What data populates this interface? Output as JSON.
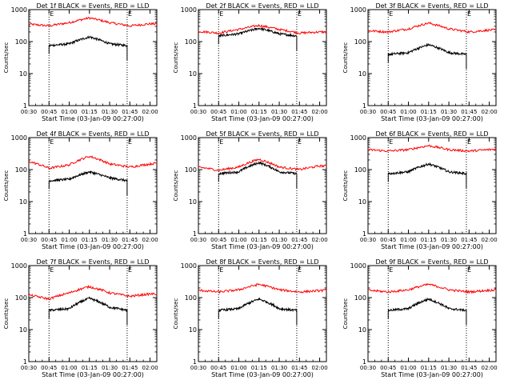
{
  "chart_data": [
    {
      "type": "line",
      "title": "Det 1f BLACK = Events, RED = LLD",
      "xlabel": "Start Time (03-Jan-09 00:27:00)",
      "ylabel": "Counts/sec",
      "yscale": "log",
      "ylim": [
        1,
        1000
      ],
      "xlim": [
        "00:30",
        "02:05"
      ],
      "x_ticks": [
        "00:30",
        "00:45",
        "01:00",
        "01:15",
        "01:30",
        "01:45",
        "02:00"
      ],
      "y_ticks": [
        "1",
        "10",
        "100",
        "1000"
      ],
      "vlines": [
        "00:45",
        "01:43"
      ],
      "vline_labels": [
        "E",
        "E"
      ],
      "series": [
        {
          "color": "#ff0000",
          "x": [
            "00:30",
            "00:45",
            "01:00",
            "01:15",
            "01:30",
            "01:45",
            "02:00",
            "02:05"
          ],
          "values": [
            350,
            310,
            390,
            550,
            390,
            310,
            360,
            360
          ]
        },
        {
          "color": "#000000",
          "x": [
            "00:45",
            "01:00",
            "01:15",
            "01:30",
            "01:43"
          ],
          "values": [
            75,
            85,
            140,
            85,
            75
          ]
        }
      ]
    },
    {
      "type": "line",
      "title": "Det 2f BLACK = Events, RED = LLD",
      "xlabel": "Start Time (03-Jan-09 00:27:00)",
      "ylabel": "Counts/sec",
      "yscale": "log",
      "ylim": [
        1,
        1000
      ],
      "xlim": [
        "00:30",
        "02:05"
      ],
      "x_ticks": [
        "00:30",
        "00:45",
        "01:00",
        "01:15",
        "01:30",
        "01:45",
        "02:00"
      ],
      "y_ticks": [
        "1",
        "10",
        "100",
        "1000"
      ],
      "vlines": [
        "00:45",
        "01:43"
      ],
      "vline_labels": [
        "E",
        "E"
      ],
      "series": [
        {
          "color": "#ff0000",
          "x": [
            "00:30",
            "00:45",
            "01:00",
            "01:15",
            "01:30",
            "01:45",
            "02:00",
            "02:05"
          ],
          "values": [
            210,
            185,
            240,
            320,
            240,
            185,
            200,
            200
          ]
        },
        {
          "color": "#000000",
          "x": [
            "00:45",
            "01:00",
            "01:15",
            "01:30",
            "01:43"
          ],
          "values": [
            150,
            175,
            260,
            175,
            150
          ]
        }
      ]
    },
    {
      "type": "line",
      "title": "Det 3f BLACK = Events, RED = LLD",
      "xlabel": "Start Time (03-Jan-09 00:27:00)",
      "ylabel": "Counts/sec",
      "yscale": "log",
      "ylim": [
        1,
        1000
      ],
      "xlim": [
        "00:30",
        "02:05"
      ],
      "x_ticks": [
        "00:30",
        "00:45",
        "01:00",
        "01:15",
        "01:30",
        "01:45",
        "02:00"
      ],
      "y_ticks": [
        "1",
        "10",
        "100",
        "1000"
      ],
      "vlines": [
        "00:45",
        "01:43"
      ],
      "vline_labels": [
        "E",
        "E"
      ],
      "series": [
        {
          "color": "#ff0000",
          "x": [
            "00:30",
            "00:45",
            "01:00",
            "01:15",
            "01:30",
            "01:45",
            "02:00",
            "02:05"
          ],
          "values": [
            220,
            200,
            250,
            380,
            250,
            200,
            230,
            230
          ]
        },
        {
          "color": "#000000",
          "x": [
            "00:45",
            "01:00",
            "01:15",
            "01:30",
            "01:43"
          ],
          "values": [
            40,
            45,
            80,
            45,
            40
          ]
        }
      ]
    },
    {
      "type": "line",
      "title": "Det 4f BLACK = Events, RED = LLD",
      "xlabel": "Start Time (03-Jan-09 00:27:00)",
      "ylabel": "Counts/sec",
      "yscale": "log",
      "ylim": [
        1,
        1000
      ],
      "xlim": [
        "00:30",
        "02:05"
      ],
      "x_ticks": [
        "00:30",
        "00:45",
        "01:00",
        "01:15",
        "01:30",
        "01:45",
        "02:00"
      ],
      "y_ticks": [
        "1",
        "10",
        "100",
        "1000"
      ],
      "vlines": [
        "00:45",
        "01:43"
      ],
      "vline_labels": [
        "E",
        "E"
      ],
      "series": [
        {
          "color": "#ff0000",
          "x": [
            "00:30",
            "00:45",
            "01:00",
            "01:15",
            "01:30",
            "01:45",
            "02:00",
            "02:05"
          ],
          "values": [
            180,
            110,
            140,
            260,
            150,
            120,
            150,
            160
          ]
        },
        {
          "color": "#000000",
          "x": [
            "00:45",
            "01:00",
            "01:15",
            "01:30",
            "01:43"
          ],
          "values": [
            45,
            50,
            85,
            55,
            45
          ]
        }
      ]
    },
    {
      "type": "line",
      "title": "Det 5f BLACK = Events, RED = LLD",
      "xlabel": "Start Time (03-Jan-09 00:27:00)",
      "ylabel": "Counts/sec",
      "yscale": "log",
      "ylim": [
        1,
        1000
      ],
      "xlim": [
        "00:30",
        "02:05"
      ],
      "x_ticks": [
        "00:30",
        "00:45",
        "01:00",
        "01:15",
        "01:30",
        "01:45",
        "02:00"
      ],
      "y_ticks": [
        "1",
        "10",
        "100",
        "1000"
      ],
      "vlines": [
        "00:45",
        "01:43"
      ],
      "vline_labels": [
        "E",
        "E"
      ],
      "series": [
        {
          "color": "#ff0000",
          "x": [
            "00:30",
            "00:45",
            "01:00",
            "01:15",
            "01:30",
            "01:45",
            "02:00",
            "02:05"
          ],
          "values": [
            120,
            95,
            120,
            210,
            120,
            100,
            130,
            130
          ]
        },
        {
          "color": "#000000",
          "x": [
            "00:45",
            "01:00",
            "01:15",
            "01:30",
            "01:43"
          ],
          "values": [
            75,
            85,
            165,
            85,
            75
          ]
        }
      ]
    },
    {
      "type": "line",
      "title": "Det 6f BLACK = Events, RED = LLD",
      "xlabel": "Start Time (03-Jan-09 00:27:00)",
      "ylabel": "Counts/sec",
      "yscale": "log",
      "ylim": [
        1,
        1000
      ],
      "xlim": [
        "00:30",
        "02:05"
      ],
      "x_ticks": [
        "00:30",
        "00:45",
        "01:00",
        "01:15",
        "01:30",
        "01:45",
        "02:00"
      ],
      "y_ticks": [
        "1",
        "10",
        "100",
        "1000"
      ],
      "vlines": [
        "00:45",
        "01:43"
      ],
      "vline_labels": [
        "E",
        "E"
      ],
      "series": [
        {
          "color": "#ff0000",
          "x": [
            "00:30",
            "00:45",
            "01:00",
            "01:15",
            "01:30",
            "01:45",
            "02:00",
            "02:05"
          ],
          "values": [
            420,
            380,
            420,
            560,
            420,
            380,
            420,
            430
          ]
        },
        {
          "color": "#000000",
          "x": [
            "00:45",
            "01:00",
            "01:15",
            "01:30",
            "01:43"
          ],
          "values": [
            75,
            85,
            150,
            85,
            75
          ]
        }
      ]
    },
    {
      "type": "line",
      "title": "Det 7f BLACK = Events, RED = LLD",
      "xlabel": "Start Time (03-Jan-09 00:27:00)",
      "ylabel": "Counts/sec",
      "yscale": "log",
      "ylim": [
        1,
        1000
      ],
      "xlim": [
        "00:30",
        "02:05"
      ],
      "x_ticks": [
        "00:30",
        "00:45",
        "01:00",
        "01:15",
        "01:30",
        "01:45",
        "02:00"
      ],
      "y_ticks": [
        "1",
        "10",
        "100",
        "1000"
      ],
      "vlines": [
        "00:45",
        "01:43"
      ],
      "vline_labels": [
        "E",
        "E"
      ],
      "series": [
        {
          "color": "#ff0000",
          "x": [
            "00:30",
            "00:45",
            "01:00",
            "01:15",
            "01:30",
            "01:45",
            "02:00",
            "02:05"
          ],
          "values": [
            120,
            90,
            140,
            220,
            140,
            110,
            130,
            130
          ]
        },
        {
          "color": "#000000",
          "x": [
            "00:45",
            "01:00",
            "01:15",
            "01:30",
            "01:43"
          ],
          "values": [
            40,
            45,
            95,
            50,
            40
          ]
        }
      ]
    },
    {
      "type": "line",
      "title": "Det 8f BLACK = Events, RED = LLD",
      "xlabel": "Start Time (03-Jan-09 00:27:00)",
      "ylabel": "Counts/sec",
      "yscale": "log",
      "ylim": [
        1,
        1000
      ],
      "xlim": [
        "00:30",
        "02:05"
      ],
      "x_ticks": [
        "00:30",
        "00:45",
        "01:00",
        "01:15",
        "01:30",
        "01:45",
        "02:00"
      ],
      "y_ticks": [
        "1",
        "10",
        "100",
        "1000"
      ],
      "vlines": [
        "00:45",
        "01:43"
      ],
      "vline_labels": [
        "E",
        "E"
      ],
      "series": [
        {
          "color": "#ff0000",
          "x": [
            "00:30",
            "00:45",
            "01:00",
            "01:15",
            "01:30",
            "01:45",
            "02:00",
            "02:05"
          ],
          "values": [
            170,
            150,
            175,
            260,
            175,
            150,
            165,
            170
          ]
        },
        {
          "color": "#000000",
          "x": [
            "00:45",
            "01:00",
            "01:15",
            "01:30",
            "01:43"
          ],
          "values": [
            40,
            45,
            90,
            45,
            40
          ]
        }
      ]
    },
    {
      "type": "line",
      "title": "Det 9f BLACK = Events, RED = LLD",
      "xlabel": "Start Time (03-Jan-09 00:27:00)",
      "ylabel": "Counts/sec",
      "yscale": "log",
      "ylim": [
        1,
        1000
      ],
      "xlim": [
        "00:30",
        "02:05"
      ],
      "x_ticks": [
        "00:30",
        "00:45",
        "01:00",
        "01:15",
        "01:30",
        "01:45",
        "02:00"
      ],
      "y_ticks": [
        "1",
        "10",
        "100",
        "1000"
      ],
      "vlines": [
        "00:45",
        "01:43"
      ],
      "vline_labels": [
        "E",
        "E"
      ],
      "series": [
        {
          "color": "#ff0000",
          "x": [
            "00:30",
            "00:45",
            "01:00",
            "01:15",
            "01:30",
            "01:45",
            "02:00",
            "02:05"
          ],
          "values": [
            170,
            150,
            175,
            260,
            175,
            150,
            170,
            175
          ]
        },
        {
          "color": "#000000",
          "x": [
            "00:45",
            "01:00",
            "01:15",
            "01:30",
            "01:43"
          ],
          "values": [
            40,
            45,
            90,
            45,
            40
          ]
        }
      ]
    }
  ]
}
